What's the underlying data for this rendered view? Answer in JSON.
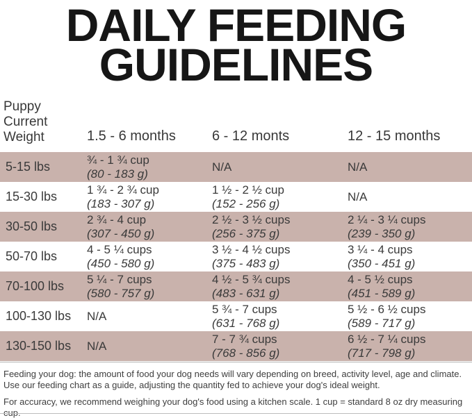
{
  "title": {
    "line1": "DAILY FEEDING",
    "line2": "GUIDELINES"
  },
  "table": {
    "weight_header_lines": [
      "Puppy",
      "Current",
      "Weight"
    ],
    "column_headers": [
      "1.5 - 6 months",
      "6 - 12 monts",
      "12 - 15 months"
    ],
    "rows": [
      {
        "weight": "5-15 lbs",
        "cols": [
          {
            "cups": "¾ - 1 ¾ cup",
            "grams": "(80 - 183 g)"
          },
          {
            "cups": "N/A",
            "grams": ""
          },
          {
            "cups": "N/A",
            "grams": ""
          }
        ]
      },
      {
        "weight": "15-30 lbs",
        "cols": [
          {
            "cups": "1 ¾ - 2 ¾ cup",
            "grams": "(183 - 307 g)"
          },
          {
            "cups": "1 ½ - 2 ½ cup",
            "grams": "(152 - 256 g)"
          },
          {
            "cups": "N/A",
            "grams": ""
          }
        ]
      },
      {
        "weight": "30-50 lbs",
        "cols": [
          {
            "cups": "2 ¾ - 4 cup",
            "grams": "(307 - 450 g)"
          },
          {
            "cups": "2 ½ - 3 ½ cups",
            "grams": "(256 - 375 g)"
          },
          {
            "cups": "2 ¼ - 3 ¼ cups",
            "grams": "(239 - 350 g)"
          }
        ]
      },
      {
        "weight": "50-70 lbs",
        "cols": [
          {
            "cups": "4 - 5 ¼ cups",
            "grams": "(450 - 580 g)"
          },
          {
            "cups": "3 ½ - 4 ½ cups",
            "grams": "(375 - 483 g)"
          },
          {
            "cups": "3 ¼  - 4 cups",
            "grams": "(350 - 451 g)"
          }
        ]
      },
      {
        "weight": "70-100 lbs",
        "cols": [
          {
            "cups": "5 ¼ - 7 cups",
            "grams": "(580 - 757 g)"
          },
          {
            "cups": "4 ½ - 5 ¾ cups",
            "grams": "(483 - 631 g)"
          },
          {
            "cups": "4 - 5 ½ cups",
            "grams": "(451 - 589 g)"
          }
        ]
      },
      {
        "weight": "100-130 lbs",
        "cols": [
          {
            "cups": "N/A",
            "grams": ""
          },
          {
            "cups": "5 ¾ - 7 cups",
            "grams": "(631 - 768 g)"
          },
          {
            "cups": "5 ½ - 6 ½ cups",
            "grams": "(589 - 717 g)"
          }
        ]
      },
      {
        "weight": "130-150 lbs",
        "cols": [
          {
            "cups": "N/A",
            "grams": ""
          },
          {
            "cups": "7 - 7 ¾ cups",
            "grams": "(768 - 856 g)"
          },
          {
            "cups": "6 ½ - 7 ¼ cups",
            "grams": "(717 - 798 g)"
          }
        ]
      }
    ]
  },
  "footer": {
    "note1": "Feeding your dog: the amount of food your dog needs will vary depending on breed, activity level, age and climate. Use our feeding chart as a guide, adjusting the quantity fed to achieve your dog's ideal weight.",
    "note2": "For accuracy, we recommend weighing your dog's food using a kitchen scale. 1 cup = standard 8 oz dry measuring cup."
  },
  "colors": {
    "row_shade": "#c9b2ac",
    "title_text": "#161616",
    "body_text": "#3a3a3a",
    "divider": "#b7b7b7"
  },
  "chart_data": {
    "type": "table",
    "title": "DAILY FEEDING GUIDELINES",
    "columns": [
      "Puppy Current Weight",
      "1.5 - 6 months",
      "6 - 12 monts",
      "12 - 15 months"
    ],
    "rows": [
      [
        "5-15 lbs",
        "¾ - 1 ¾ cup (80 - 183 g)",
        "N/A",
        "N/A"
      ],
      [
        "15-30 lbs",
        "1 ¾ - 2 ¾ cup (183 - 307 g)",
        "1 ½ - 2 ½ cup (152 - 256 g)",
        "N/A"
      ],
      [
        "30-50 lbs",
        "2 ¾ - 4 cup (307 - 450 g)",
        "2 ½ - 3 ½ cups (256 - 375 g)",
        "2 ¼ - 3 ¼ cups (239 - 350 g)"
      ],
      [
        "50-70 lbs",
        "4 - 5 ¼ cups (450 - 580 g)",
        "3 ½ - 4 ½ cups (375 - 483 g)",
        "3 ¼ - 4 cups (350 - 451 g)"
      ],
      [
        "70-100 lbs",
        "5 ¼ - 7 cups (580 - 757 g)",
        "4 ½ - 5 ¾ cups (483 - 631 g)",
        "4 - 5 ½ cups (451 - 589 g)"
      ],
      [
        "100-130 lbs",
        "N/A",
        "5 ¾ - 7 cups (631 - 768 g)",
        "5 ½ - 6 ½ cups (589 - 717 g)"
      ],
      [
        "130-150 lbs",
        "N/A",
        "7 - 7 ¾ cups (768 - 856 g)",
        "6 ½ - 7 ¼ cups (717 - 798 g)"
      ]
    ]
  }
}
